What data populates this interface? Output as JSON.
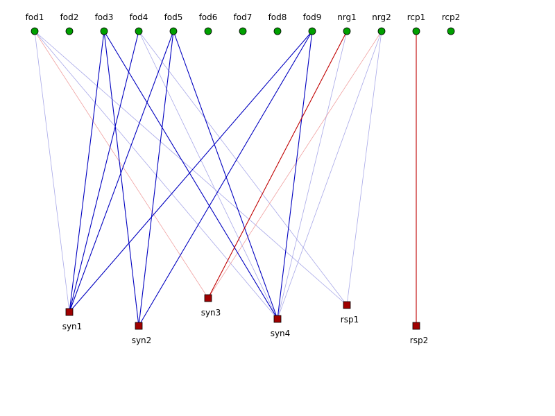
{
  "colors": {
    "top_node_fill": "#00a000",
    "bottom_node_fill": "#a00000",
    "blue_strong": "#0000c0",
    "blue_weak": "#a8a8e8",
    "red_strong": "#c00000",
    "red_weak": "#f0a0a0"
  },
  "top_nodes": [
    {
      "id": "fod1",
      "label": "fod1"
    },
    {
      "id": "fod2",
      "label": "fod2"
    },
    {
      "id": "fod3",
      "label": "fod3"
    },
    {
      "id": "fod4",
      "label": "fod4"
    },
    {
      "id": "fod5",
      "label": "fod5"
    },
    {
      "id": "fod6",
      "label": "fod6"
    },
    {
      "id": "fod7",
      "label": "fod7"
    },
    {
      "id": "fod8",
      "label": "fod8"
    },
    {
      "id": "fod9",
      "label": "fod9"
    },
    {
      "id": "nrg1",
      "label": "nrg1"
    },
    {
      "id": "nrg2",
      "label": "nrg2"
    },
    {
      "id": "rcp1",
      "label": "rcp1"
    },
    {
      "id": "rcp2",
      "label": "rcp2"
    }
  ],
  "bottom_nodes": [
    {
      "id": "syn1",
      "label": "syn1"
    },
    {
      "id": "syn2",
      "label": "syn2"
    },
    {
      "id": "syn3",
      "label": "syn3"
    },
    {
      "id": "syn4",
      "label": "syn4"
    },
    {
      "id": "rsp1",
      "label": "rsp1"
    },
    {
      "id": "rsp2",
      "label": "rsp2"
    }
  ],
  "edges": [
    {
      "from": "fod1",
      "to": "syn1",
      "color": "blue",
      "strength": "weak"
    },
    {
      "from": "fod1",
      "to": "syn3",
      "color": "red",
      "strength": "weak"
    },
    {
      "from": "fod1",
      "to": "syn4",
      "color": "blue",
      "strength": "weak"
    },
    {
      "from": "fod1",
      "to": "rsp1",
      "color": "blue",
      "strength": "weak"
    },
    {
      "from": "fod3",
      "to": "syn1",
      "color": "blue",
      "strength": "strong"
    },
    {
      "from": "fod3",
      "to": "syn2",
      "color": "blue",
      "strength": "strong"
    },
    {
      "from": "fod3",
      "to": "syn4",
      "color": "blue",
      "strength": "strong"
    },
    {
      "from": "fod4",
      "to": "syn1",
      "color": "blue",
      "strength": "strong"
    },
    {
      "from": "fod4",
      "to": "syn4",
      "color": "blue",
      "strength": "weak"
    },
    {
      "from": "fod4",
      "to": "rsp1",
      "color": "blue",
      "strength": "weak"
    },
    {
      "from": "fod5",
      "to": "syn1",
      "color": "blue",
      "strength": "strong"
    },
    {
      "from": "fod5",
      "to": "syn2",
      "color": "blue",
      "strength": "strong"
    },
    {
      "from": "fod5",
      "to": "syn4",
      "color": "blue",
      "strength": "strong"
    },
    {
      "from": "fod9",
      "to": "syn1",
      "color": "blue",
      "strength": "strong"
    },
    {
      "from": "fod9",
      "to": "syn2",
      "color": "blue",
      "strength": "strong"
    },
    {
      "from": "fod9",
      "to": "syn4",
      "color": "blue",
      "strength": "strong"
    },
    {
      "from": "nrg1",
      "to": "syn3",
      "color": "red",
      "strength": "strong"
    },
    {
      "from": "nrg1",
      "to": "syn4",
      "color": "blue",
      "strength": "weak"
    },
    {
      "from": "nrg2",
      "to": "syn3",
      "color": "red",
      "strength": "weak"
    },
    {
      "from": "nrg2",
      "to": "syn4",
      "color": "blue",
      "strength": "weak"
    },
    {
      "from": "nrg2",
      "to": "rsp1",
      "color": "blue",
      "strength": "weak"
    },
    {
      "from": "rcp1",
      "to": "rsp2",
      "color": "red",
      "strength": "strong"
    }
  ]
}
